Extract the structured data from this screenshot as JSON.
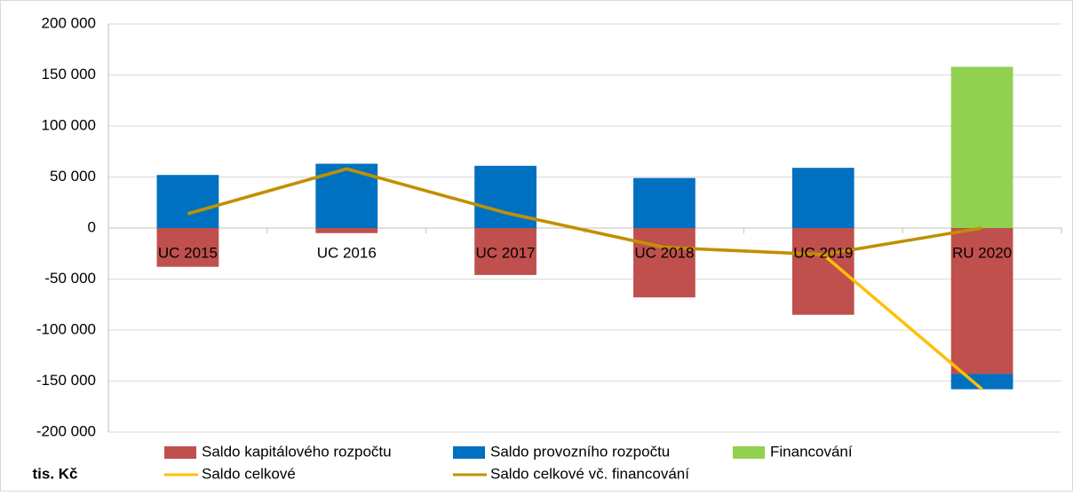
{
  "chart_data": {
    "type": "bar",
    "stacked": true,
    "y_label": "tis. Kč",
    "categories": [
      "UC 2015",
      "UC 2016",
      "UC 2017",
      "UC 2018",
      "UC 2019",
      "RU 2020"
    ],
    "series": [
      {
        "name": "Saldo kapitálového rozpočtu",
        "type": "bar",
        "color": "#c0504d",
        "values": [
          -38000,
          -5000,
          -46000,
          -68000,
          -85000,
          -143000
        ]
      },
      {
        "name": "Saldo provozního rozpočtu",
        "type": "bar",
        "color": "#0070c0",
        "values": [
          52000,
          63000,
          61000,
          49000,
          59000,
          -15000
        ]
      },
      {
        "name": "Financování",
        "type": "bar",
        "color": "#92d050",
        "values": [
          0,
          0,
          0,
          0,
          0,
          158000
        ]
      },
      {
        "name": "Saldo celkové",
        "type": "line",
        "color": "#ffc000",
        "values": [
          14000,
          58000,
          15000,
          -19000,
          -26000,
          -158000
        ]
      },
      {
        "name": "Saldo celkové vč. financování",
        "type": "line",
        "color": "#bf9000",
        "values": [
          14000,
          58000,
          15000,
          -19000,
          -26000,
          0
        ]
      }
    ],
    "ylim": [
      -200000,
      200000
    ],
    "yticks": [
      {
        "value": 200000,
        "label": "200 000"
      },
      {
        "value": 150000,
        "label": "150 000"
      },
      {
        "value": 100000,
        "label": "100 000"
      },
      {
        "value": 50000,
        "label": "50 000"
      },
      0,
      {
        "value": -50000,
        "label": "-50 000"
      },
      {
        "value": -100000,
        "label": "-100 000"
      },
      {
        "value": -150000,
        "label": "-150 000"
      },
      {
        "value": -200000,
        "label": "-200 000"
      }
    ],
    "grid": true
  }
}
